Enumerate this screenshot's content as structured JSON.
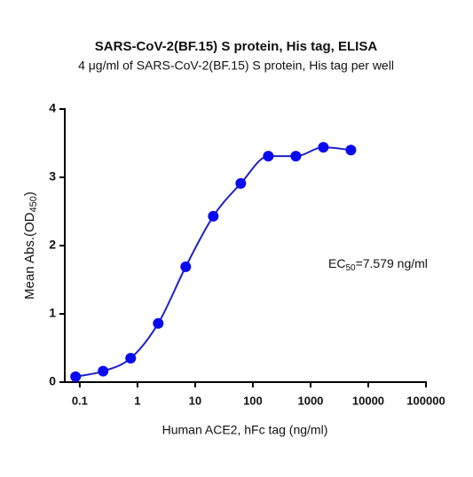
{
  "chart_data": {
    "type": "scatter",
    "title": "SARS-CoV-2(BF.15) S protein, His tag, ELISA",
    "subtitle": "4 μg/ml of SARS-CoV-2(BF.15) S protein, His tag per well",
    "x_label": "Human ACE2, hFc tag (ng/ml)",
    "y_label": {
      "text": "Mean Abs.(OD",
      "subscript": "450",
      "suffix": ")"
    },
    "annotation": {
      "text": "EC",
      "subscript": "50",
      "suffix": "=7.579 ng/ml"
    },
    "x": [
      0.0847,
      0.254,
      0.762,
      2.29,
      6.86,
      20.6,
      61.7,
      185.2,
      555.6,
      1666.7,
      5000
    ],
    "values": [
      0.08,
      0.16,
      0.35,
      0.86,
      1.69,
      2.43,
      2.91,
      3.31,
      3.31,
      3.44,
      3.4
    ],
    "color": "#0a0af0",
    "line_color": "#2020c8",
    "fit_curve": true,
    "xscale": "log",
    "xlim": [
      0.055,
      100000
    ],
    "ylim": [
      0,
      4
    ],
    "xticks": [
      0.1,
      1,
      10,
      100,
      1000,
      10000,
      100000
    ],
    "yticks": [
      0,
      1,
      2,
      3,
      4
    ]
  }
}
